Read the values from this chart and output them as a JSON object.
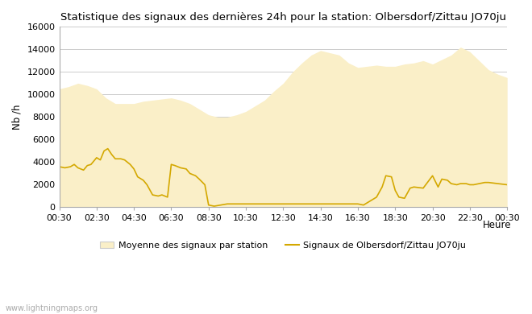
{
  "title": "Statistique des signaux des dernières 24h pour la station: Olbersdorf/Zittau JO70ju",
  "xlabel": "Heure",
  "ylabel": "Nb /h",
  "watermark": "www.lightningmaps.org",
  "ylim": [
    0,
    16000
  ],
  "yticks": [
    0,
    2000,
    4000,
    6000,
    8000,
    10000,
    12000,
    14000,
    16000
  ],
  "xtick_labels": [
    "00:30",
    "02:30",
    "04:30",
    "06:30",
    "08:30",
    "10:30",
    "12:30",
    "14:30",
    "16:30",
    "18:30",
    "20:30",
    "22:30",
    "00:30"
  ],
  "background_color": "#ffffff",
  "fill_color": "#faefc8",
  "line_color": "#d4a800",
  "legend_fill_label": "Moyenne des signaux par station",
  "legend_line_label": "Signaux de Olbersdorf/Zittau JO70ju",
  "avg_x": [
    0,
    0.5,
    1,
    1.5,
    2,
    2.5,
    3,
    3.5,
    4,
    4.5,
    5,
    5.5,
    6,
    6.5,
    7,
    7.5,
    8,
    8.5,
    9,
    9.5,
    10,
    10.5,
    11,
    11.5,
    12,
    12.5,
    13,
    13.5,
    14,
    14.5,
    15,
    15.5,
    16,
    16.5,
    17,
    17.5,
    18,
    18.5,
    19,
    19.5,
    20,
    20.5,
    21,
    21.5,
    22,
    22.5,
    23,
    23.5,
    24
  ],
  "avg_y": [
    10500,
    10700,
    11000,
    10800,
    10500,
    9700,
    9200,
    9200,
    9200,
    9400,
    9500,
    9600,
    9700,
    9500,
    9200,
    8700,
    8200,
    8000,
    8000,
    8200,
    8500,
    9000,
    9500,
    10300,
    11000,
    12000,
    12800,
    13500,
    13900,
    13700,
    13500,
    12800,
    12400,
    12500,
    12600,
    12500,
    12500,
    12700,
    12800,
    13000,
    12700,
    13100,
    13500,
    14200,
    13800,
    13000,
    12200,
    11800,
    11500
  ],
  "station_x": [
    0,
    0.3,
    0.6,
    0.8,
    1.0,
    1.3,
    1.5,
    1.7,
    2.0,
    2.2,
    2.4,
    2.6,
    2.8,
    3.0,
    3.3,
    3.5,
    3.8,
    4.0,
    4.2,
    4.5,
    4.7,
    5.0,
    5.3,
    5.5,
    5.8,
    6.0,
    6.2,
    6.5,
    6.8,
    7.0,
    7.3,
    7.5,
    7.8,
    8.0,
    8.3,
    9.0,
    9.5,
    10.0,
    10.5,
    11.0,
    11.5,
    12.0,
    12.3,
    12.5,
    13.0,
    13.5,
    14.0,
    15.0,
    16.0,
    16.3,
    17.0,
    17.3,
    17.5,
    17.8,
    18.0,
    18.2,
    18.5,
    18.8,
    19.0,
    19.5,
    20.0,
    20.3,
    20.5,
    20.8,
    21.0,
    21.3,
    21.5,
    21.8,
    22.0,
    22.2,
    22.5,
    22.8,
    23.0,
    23.5,
    24.0
  ],
  "station_y": [
    3600,
    3500,
    3600,
    3800,
    3500,
    3300,
    3700,
    3800,
    4400,
    4200,
    5000,
    5200,
    4700,
    4300,
    4300,
    4200,
    3800,
    3400,
    2700,
    2400,
    2000,
    1100,
    1000,
    1100,
    900,
    3800,
    3700,
    3500,
    3400,
    3000,
    2800,
    2500,
    2000,
    200,
    100,
    300,
    300,
    300,
    300,
    300,
    300,
    300,
    300,
    300,
    300,
    300,
    300,
    300,
    300,
    200,
    900,
    1800,
    2800,
    2700,
    1500,
    900,
    800,
    1700,
    1800,
    1700,
    2800,
    1800,
    2500,
    2400,
    2100,
    2000,
    2100,
    2100,
    2000,
    2000,
    2100,
    2200,
    2200,
    2100,
    2000
  ]
}
